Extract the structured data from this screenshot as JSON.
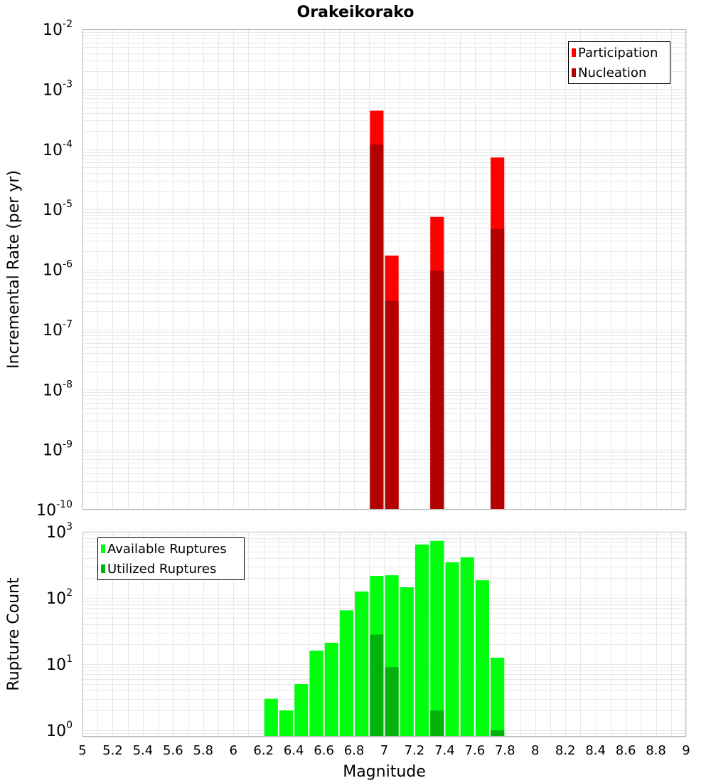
{
  "title": "Orakeikorako",
  "colors": {
    "participation": "#ff0000",
    "nucleation": "#b30000",
    "available": "#00ff0d",
    "utilized": "#00b30a",
    "grid": "#e8e8e8",
    "frame": "#b8b8b8"
  },
  "chart_data": [
    {
      "type": "bar",
      "panel": "top",
      "title": "Orakeikorako",
      "xlabel": "",
      "ylabel": "Incremental Rate (per yr)",
      "x_scale": "linear",
      "y_scale": "log",
      "xlim": [
        5,
        9
      ],
      "ylim": [
        1e-10,
        0.01
      ],
      "grid": true,
      "legend_position": "top-right",
      "y_tick_exponents": [
        -10,
        -9,
        -8,
        -7,
        -6,
        -5,
        -4,
        -3,
        -2
      ],
      "bar_width": 0.09,
      "series": [
        {
          "name": "Participation",
          "color": "#ff0000",
          "points": [
            {
              "x": 6.95,
              "y": 0.00044
            },
            {
              "x": 7.05,
              "y": 1.7e-06
            },
            {
              "x": 7.35,
              "y": 7.5e-06
            },
            {
              "x": 7.75,
              "y": 7.3e-05
            }
          ]
        },
        {
          "name": "Nucleation",
          "color": "#b30000",
          "points": [
            {
              "x": 6.95,
              "y": 0.00012
            },
            {
              "x": 7.05,
              "y": 3e-07
            },
            {
              "x": 7.35,
              "y": 9.5e-07
            },
            {
              "x": 7.75,
              "y": 4.7e-06
            }
          ]
        }
      ]
    },
    {
      "type": "bar",
      "panel": "bottom",
      "xlabel": "Magnitude",
      "ylabel": "Rupture Count",
      "x_scale": "linear",
      "y_scale": "log",
      "xlim": [
        5,
        9
      ],
      "ylim": [
        0.8,
        1000
      ],
      "grid": true,
      "legend_position": "top-left",
      "y_tick_exponents": [
        0,
        1,
        2,
        3
      ],
      "x_ticks": [
        "5",
        "5.2",
        "5.4",
        "5.6",
        "5.8",
        "6",
        "6.2",
        "6.4",
        "6.6",
        "6.8",
        "7",
        "7.2",
        "7.4",
        "7.6",
        "7.8",
        "8",
        "8.2",
        "8.4",
        "8.6",
        "8.8",
        "9"
      ],
      "bar_width": 0.09,
      "series": [
        {
          "name": "Available Ruptures",
          "color": "#00ff0d",
          "points": [
            {
              "x": 6.25,
              "y": 3
            },
            {
              "x": 6.35,
              "y": 2
            },
            {
              "x": 6.45,
              "y": 5
            },
            {
              "x": 6.55,
              "y": 16
            },
            {
              "x": 6.65,
              "y": 21
            },
            {
              "x": 6.75,
              "y": 65
            },
            {
              "x": 6.85,
              "y": 125
            },
            {
              "x": 6.95,
              "y": 215
            },
            {
              "x": 7.05,
              "y": 220
            },
            {
              "x": 7.15,
              "y": 145
            },
            {
              "x": 7.25,
              "y": 640
            },
            {
              "x": 7.35,
              "y": 730
            },
            {
              "x": 7.45,
              "y": 345
            },
            {
              "x": 7.55,
              "y": 410
            },
            {
              "x": 7.65,
              "y": 185
            },
            {
              "x": 7.75,
              "y": 12.5
            }
          ]
        },
        {
          "name": "Utilized Ruptures",
          "color": "#00b30a",
          "points": [
            {
              "x": 6.95,
              "y": 28
            },
            {
              "x": 7.05,
              "y": 9
            },
            {
              "x": 7.35,
              "y": 2
            },
            {
              "x": 7.75,
              "y": 1
            }
          ]
        }
      ]
    }
  ]
}
